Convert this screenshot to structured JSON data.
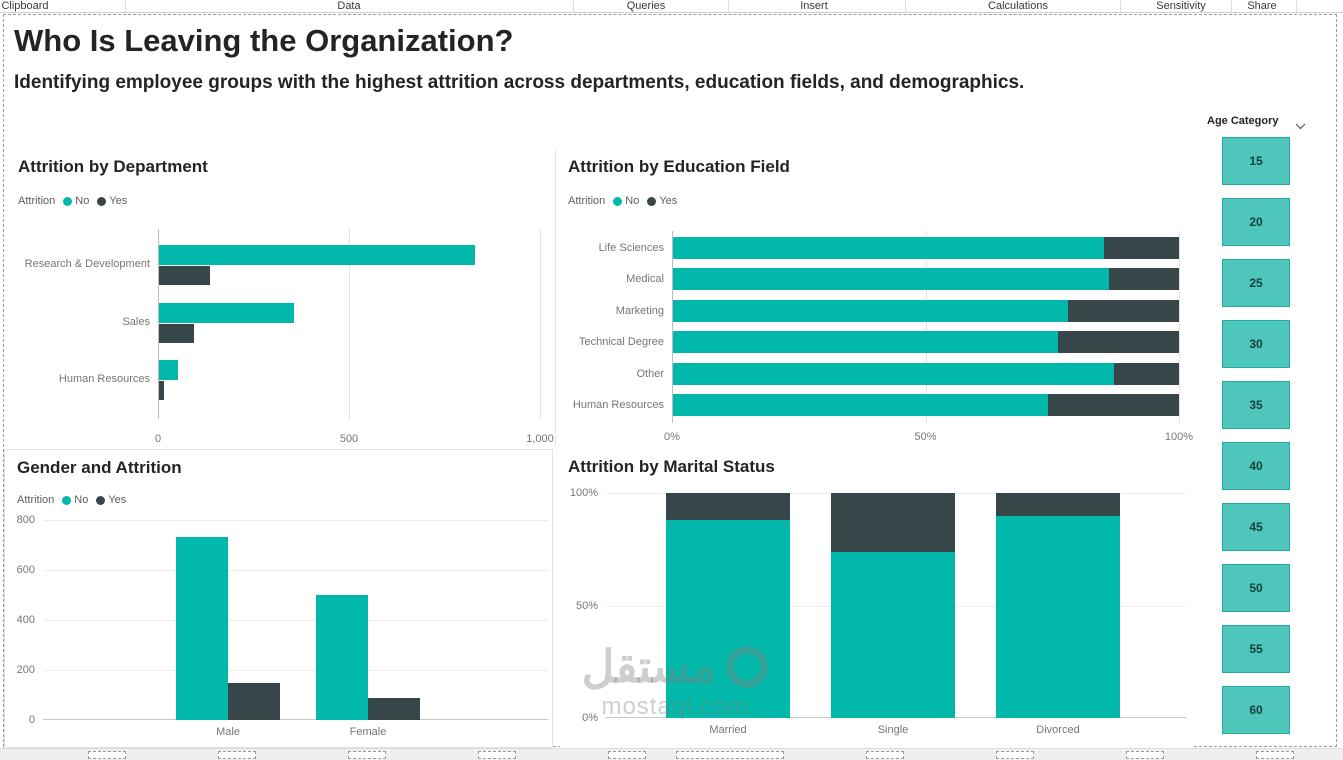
{
  "ribbon": {
    "tabs": [
      "Clipboard",
      "Data",
      "Queries",
      "Insert",
      "Calculations",
      "Sensitivity",
      "Share"
    ]
  },
  "header": {
    "title": "Who Is Leaving the Organization?",
    "subtitle": "Identifying employee groups with the highest attrition across departments, education fields, and demographics."
  },
  "colors": {
    "no": "#01B8AA",
    "yes": "#374649",
    "slicer_fill": "#4EC6BB",
    "slicer_border": "#23ABA0"
  },
  "slicer": {
    "title": "Age Category",
    "items": [
      "15",
      "20",
      "25",
      "30",
      "35",
      "40",
      "45",
      "50",
      "55",
      "60"
    ]
  },
  "watermark": {
    "arabic": "مستقل",
    "latin": "mostaql.com"
  },
  "chart_data": [
    {
      "type": "bar",
      "title": "Attrition by Department",
      "legend_title": "Attrition",
      "legend": [
        "No",
        "Yes"
      ],
      "categories": [
        "Research & Development",
        "Sales",
        "Human Resources"
      ],
      "series": [
        {
          "name": "No",
          "values": [
            828,
            354,
            51
          ]
        },
        {
          "name": "Yes",
          "values": [
            133,
            92,
            12
          ]
        }
      ],
      "xlim": [
        0,
        1000
      ],
      "xticks": [
        "0",
        "500",
        "1,000"
      ]
    },
    {
      "type": "bar-stacked-100",
      "title": "Attrition by Education Field",
      "legend_title": "Attrition",
      "legend": [
        "No",
        "Yes"
      ],
      "categories": [
        "Life Sciences",
        "Medical",
        "Marketing",
        "Technical Degree",
        "Other",
        "Human Resources"
      ],
      "series": [
        {
          "name": "No",
          "values": [
            85,
            86,
            78,
            76,
            87,
            74
          ]
        },
        {
          "name": "Yes",
          "values": [
            15,
            14,
            22,
            24,
            13,
            26
          ]
        }
      ],
      "xlim": [
        0,
        100
      ],
      "xticks": [
        "0%",
        "50%",
        "100%"
      ]
    },
    {
      "type": "column",
      "title": "Gender and Attrition",
      "legend_title": "Attrition",
      "legend": [
        "No",
        "Yes"
      ],
      "categories": [
        "Male",
        "Female"
      ],
      "series": [
        {
          "name": "No",
          "values": [
            732,
            501
          ]
        },
        {
          "name": "Yes",
          "values": [
            150,
            87
          ]
        }
      ],
      "ylim": [
        0,
        800
      ],
      "yticks": [
        "800",
        "600",
        "400",
        "200",
        "0"
      ]
    },
    {
      "type": "column-stacked-100",
      "title": "Attrition by Marital Status",
      "categories": [
        "Married",
        "Single",
        "Divorced"
      ],
      "series": [
        {
          "name": "No",
          "values": [
            88,
            74,
            90
          ]
        },
        {
          "name": "Yes",
          "values": [
            12,
            26,
            10
          ]
        }
      ],
      "ylim": [
        0,
        100
      ],
      "yticks": [
        "100%",
        "50%",
        "0%"
      ]
    }
  ]
}
